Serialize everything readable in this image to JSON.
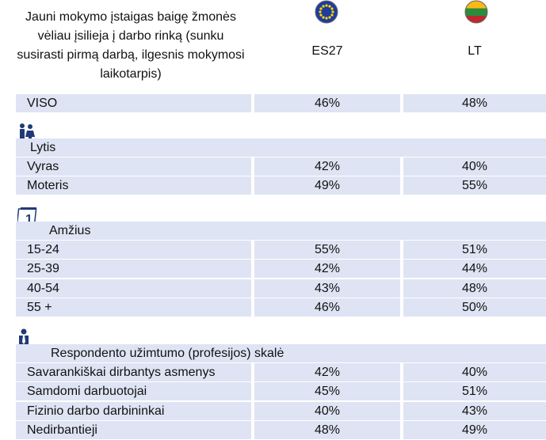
{
  "header": {
    "title_lines": [
      "Jauni mokymo įstaigas baigę žmonės",
      "vėliau įsilieja į darbo rinką (sunku",
      "susirasti pirmą darbą, ilgesnis mokymosi",
      "laikotarpis)"
    ],
    "columns": [
      "ES27",
      "LT"
    ]
  },
  "total": {
    "label": "VISO",
    "values": [
      "46%",
      "48%"
    ]
  },
  "sections": [
    {
      "title": "Lytis",
      "rows": [
        {
          "label": "Vyras",
          "values": [
            "42%",
            "40%"
          ]
        },
        {
          "label": "Moteris",
          "values": [
            "49%",
            "55%"
          ]
        }
      ]
    },
    {
      "title": "Amžius",
      "rows": [
        {
          "label": "15-24",
          "values": [
            "55%",
            "51%"
          ]
        },
        {
          "label": "25-39",
          "values": [
            "42%",
            "44%"
          ]
        },
        {
          "label": "40-54",
          "values": [
            "43%",
            "48%"
          ]
        },
        {
          "label": "55 +",
          "values": [
            "46%",
            "50%"
          ]
        }
      ]
    },
    {
      "title": "Respondento užimtumo (profesijos) skalė",
      "rows": [
        {
          "label": "Savarankiškai dirbantys asmenys",
          "values": [
            "42%",
            "40%"
          ]
        },
        {
          "label": "Samdomi darbuotojai",
          "values": [
            "45%",
            "51%"
          ]
        },
        {
          "label": "Fizinio darbo darbininkai",
          "values": [
            "40%",
            "43%"
          ]
        },
        {
          "label": "Nedirbantieji",
          "values": [
            "48%",
            "49%"
          ]
        }
      ]
    }
  ]
}
